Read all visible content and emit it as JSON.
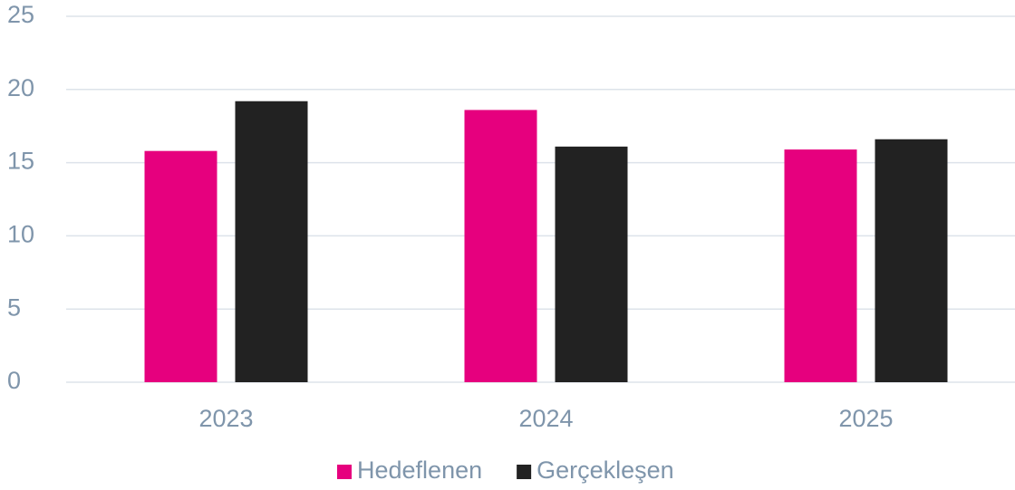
{
  "chart_data": {
    "type": "bar",
    "categories": [
      "2023",
      "2024",
      "2025"
    ],
    "series": [
      {
        "name": "Hedeflenen",
        "color": "#e6007e",
        "values": [
          15.8,
          18.6,
          15.9
        ]
      },
      {
        "name": "Gerçekleşen",
        "color": "#222222",
        "values": [
          19.2,
          16.1,
          16.6
        ]
      }
    ],
    "ylim": [
      0,
      25
    ],
    "yticks": [
      0,
      5,
      10,
      15,
      20,
      25
    ],
    "grid": true,
    "legend": "bottom"
  }
}
